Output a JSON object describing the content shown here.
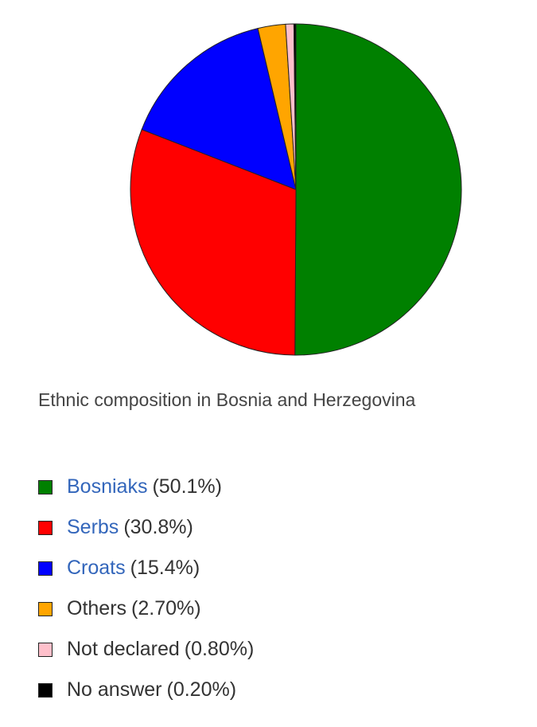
{
  "caption": "Ethnic composition in Bosnia and Herzegovina",
  "chart_data": {
    "type": "pie",
    "title": "",
    "slices": [
      {
        "label": "Bosniaks",
        "value": 50.1,
        "display": "(50.1%)",
        "color": "#008000",
        "link": true
      },
      {
        "label": "Serbs",
        "value": 30.8,
        "display": "(30.8%)",
        "color": "#ff0000",
        "link": true
      },
      {
        "label": "Croats",
        "value": 15.4,
        "display": "(15.4%)",
        "color": "#0000ff",
        "link": true
      },
      {
        "label": "Others",
        "value": 2.7,
        "display": "(2.70%)",
        "color": "#ffa500",
        "link": false
      },
      {
        "label": "Not declared",
        "value": 0.8,
        "display": "(0.80%)",
        "color": "#ffc0cb",
        "link": false
      },
      {
        "label": "No answer",
        "value": 0.2,
        "display": "(0.20%)",
        "color": "#000000",
        "link": false
      }
    ],
    "start": "top",
    "direction": "clockwise",
    "legend": "bottom"
  }
}
